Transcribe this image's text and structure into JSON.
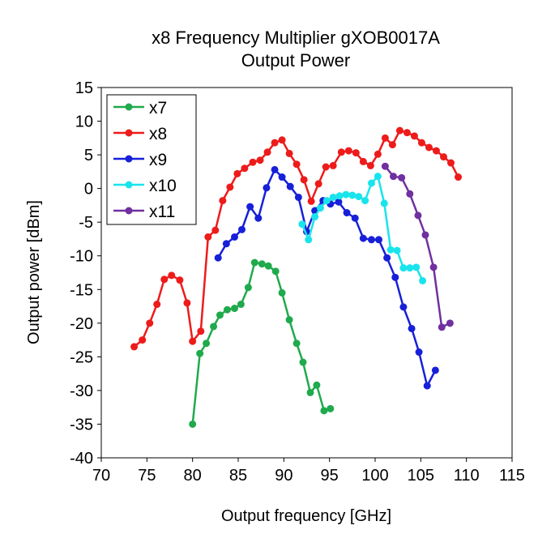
{
  "chart_data": {
    "type": "line",
    "title_lines": [
      "x8 Frequency Multiplier gXOB0017A",
      "Output Power"
    ],
    "xlabel": "Output frequency [GHz]",
    "ylabel": "Output power [dBm]",
    "xlim": [
      70,
      115
    ],
    "ylim": [
      -40,
      15
    ],
    "xticks": [
      70,
      75,
      80,
      85,
      90,
      95,
      100,
      105,
      110,
      115
    ],
    "yticks": [
      15,
      10,
      5,
      0,
      -5,
      -10,
      -15,
      -20,
      -25,
      -30,
      -35,
      -40
    ],
    "xtick_labels": [
      "70",
      "75",
      "80",
      "85",
      "90",
      "95",
      "100",
      "105",
      "110",
      "115"
    ],
    "ytick_labels": [
      "15",
      "10",
      "5",
      "0",
      "-5",
      "-10",
      "-15",
      "-20",
      "-25",
      "-30",
      "-35",
      "-40"
    ],
    "grid": false,
    "legend_position": "top-left",
    "series": [
      {
        "name": "x7",
        "color": "#1faa4c",
        "x": [
          80.0,
          80.8,
          81.5,
          82.3,
          83.0,
          83.8,
          84.6,
          85.3,
          86.1,
          86.8,
          87.6,
          88.3,
          89.1,
          89.8,
          90.6,
          91.4,
          92.1,
          92.9,
          93.6,
          94.4,
          95.1,
          95.9
        ],
        "y": [
          -35.0,
          -24.5,
          -23.0,
          -20.5,
          -18.8,
          -18.0,
          -17.8,
          -17.2,
          -14.7,
          -11.0,
          -11.2,
          -11.5,
          -12.3,
          -15.5,
          -19.5,
          -23.0,
          -25.8,
          -30.3,
          -29.2,
          -33.0,
          -32.7,
          null
        ]
      },
      {
        "name": "x8",
        "color": "#ee1b1b",
        "x": [
          73.6,
          74.5,
          75.3,
          76.1,
          76.9,
          77.7,
          78.6,
          79.4,
          80.0,
          80.9,
          81.7,
          82.5,
          83.3,
          84.1,
          84.9,
          85.7,
          86.6,
          87.4,
          88.2,
          89.0,
          89.8,
          90.6,
          91.4,
          92.2,
          93.0,
          93.8,
          94.6,
          95.4,
          96.3,
          97.1,
          97.9,
          98.7,
          99.5,
          100.3,
          101.1,
          101.9,
          102.7,
          103.5,
          104.3,
          105.1,
          105.9,
          106.7,
          107.5,
          108.3,
          109.1
        ],
        "y": [
          -23.5,
          -22.5,
          -20.0,
          -17.2,
          -13.5,
          -12.9,
          -13.6,
          -17.0,
          -22.7,
          -21.2,
          -7.2,
          -6.2,
          -1.8,
          0.2,
          2.2,
          3.0,
          3.9,
          4.2,
          5.4,
          6.8,
          7.2,
          5.2,
          3.6,
          1.3,
          -1.9,
          0.7,
          3.2,
          3.4,
          5.4,
          5.6,
          5.3,
          4.0,
          3.4,
          5.1,
          7.5,
          6.5,
          8.6,
          8.3,
          7.8,
          6.8,
          6.1,
          5.6,
          4.7,
          3.8,
          1.7
        ]
      },
      {
        "name": "x9",
        "color": "#1720d8",
        "x": [
          82.8,
          83.7,
          84.6,
          85.4,
          86.3,
          87.2,
          88.1,
          89.0,
          89.8,
          90.7,
          91.6,
          92.5,
          93.4,
          94.3,
          95.1,
          96.0,
          96.9,
          97.8,
          98.7,
          99.6,
          100.4,
          101.3,
          102.2,
          103.1,
          104.0,
          104.8,
          105.7,
          106.6
        ],
        "y": [
          -10.3,
          -8.2,
          -7.2,
          -6.1,
          -2.7,
          -4.4,
          0.1,
          2.8,
          1.7,
          0.3,
          -1.3,
          -6.4,
          -3.3,
          -1.8,
          -2.3,
          -2.0,
          -3.6,
          -4.4,
          -7.4,
          -7.6,
          -7.6,
          -10.3,
          -13.2,
          -17.6,
          -20.8,
          -24.3,
          -29.3,
          -27.0
        ]
      },
      {
        "name": "x10",
        "color": "#19e4ec",
        "x": [
          92.0,
          92.7,
          93.4,
          94.0,
          94.7,
          95.4,
          96.1,
          96.8,
          97.5,
          98.2,
          98.9,
          99.6,
          100.3,
          101.0,
          101.7,
          102.4,
          103.1,
          103.8,
          104.5,
          105.2,
          105.9,
          106.6,
          107.3
        ],
        "y": [
          -5.3,
          -7.6,
          -4.2,
          -2.9,
          -1.8,
          -1.3,
          -1.1,
          -0.9,
          -1.0,
          -1.2,
          -1.8,
          0.8,
          1.8,
          -2.2,
          -9.1,
          -9.2,
          -11.8,
          -11.8,
          -11.7,
          -13.7,
          null,
          null,
          null
        ]
      },
      {
        "name": "x11",
        "color": "#7030a0",
        "x": [
          101.1,
          102.0,
          102.9,
          103.8,
          104.7,
          105.5,
          106.4,
          107.3,
          108.2,
          109.1
        ],
        "y": [
          3.3,
          1.8,
          1.6,
          -0.8,
          -4.0,
          -6.9,
          -11.7,
          -20.6,
          -20.0,
          null
        ]
      }
    ]
  }
}
